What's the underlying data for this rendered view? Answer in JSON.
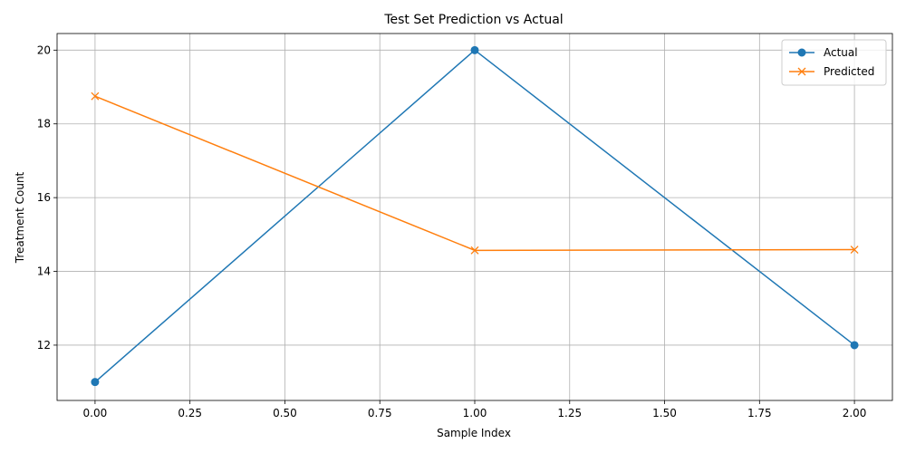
{
  "chart_data": {
    "type": "line",
    "title": "Test Set Prediction vs Actual",
    "xlabel": "Sample Index",
    "ylabel": "Treatment Count",
    "xlim": [
      -0.1,
      2.1
    ],
    "ylim": [
      10.5,
      20.45
    ],
    "xticks": [
      0.0,
      0.25,
      0.5,
      0.75,
      1.0,
      1.25,
      1.5,
      1.75,
      2.0
    ],
    "xtick_labels": [
      "0.00",
      "0.25",
      "0.50",
      "0.75",
      "1.00",
      "1.25",
      "1.50",
      "1.75",
      "2.00"
    ],
    "yticks": [
      12,
      14,
      16,
      18,
      20
    ],
    "ytick_labels": [
      "12",
      "14",
      "16",
      "18",
      "20"
    ],
    "grid": true,
    "legend_position": "top-right",
    "x": [
      0,
      1,
      2
    ],
    "series": [
      {
        "name": "Actual",
        "values": [
          11,
          20,
          12
        ],
        "color": "#1f77b4",
        "marker": "circle"
      },
      {
        "name": "Predicted",
        "values": [
          18.75,
          14.57,
          14.59
        ],
        "color": "#ff7f0e",
        "marker": "x"
      }
    ]
  }
}
